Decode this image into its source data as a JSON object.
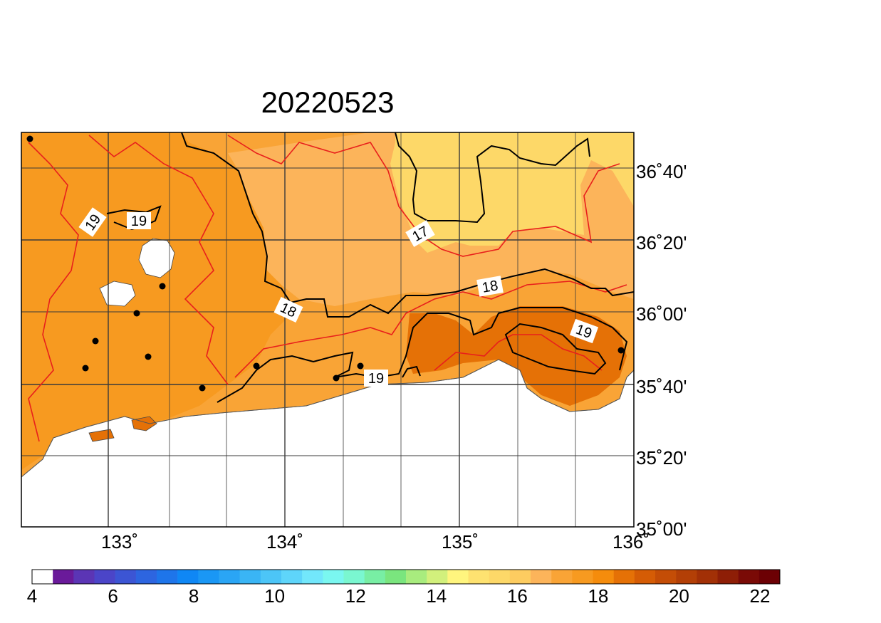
{
  "title": "20220523",
  "x_ticks": [
    "133˚",
    "134˚",
    "135˚",
    "136˚"
  ],
  "y_ticks": [
    "36˚40'",
    "36˚20'",
    "36˚00'",
    "35˚40'",
    "35˚20'",
    "35˚00'"
  ],
  "contour_labels": [
    "19",
    "19",
    "17",
    "18",
    "18",
    "19",
    "19"
  ],
  "colorbar": {
    "min": 4,
    "max": 22,
    "step": 0.5,
    "tick_labels": [
      "4",
      "6",
      "8",
      "10",
      "12",
      "14",
      "16",
      "18",
      "20",
      "22"
    ],
    "colors": [
      "#ffffff",
      "#6a1a9a",
      "#5b35b5",
      "#4b45c8",
      "#3c55d4",
      "#2d65e0",
      "#1e75ea",
      "#0f87f5",
      "#1a97f5",
      "#2aa5f5",
      "#3ab5f5",
      "#4cc5f7",
      "#5ed5fa",
      "#72e7fb",
      "#7af7f0",
      "#7af7d0",
      "#78eea4",
      "#7ae57e",
      "#a8ec7e",
      "#d2f07c",
      "#fff57e",
      "#fee270",
      "#fdd868",
      "#fdcc60",
      "#fcb45a",
      "#f9a436",
      "#f79a20",
      "#f58c0c",
      "#e57106",
      "#d55c05",
      "#c44d06",
      "#b33f06",
      "#a23006",
      "#8e1e06",
      "#7a0a06",
      "#6c0004"
    ]
  },
  "colors": {
    "frame": "#000000",
    "land_main": "#f9a436",
    "land_warm": "#f79a20",
    "land_cool": "#fcb45a",
    "land_yellow": "#fdd868",
    "land_hot": "#e57106",
    "sea": "#ffffff",
    "contour_black": "#000000",
    "contour_red": "#e8201c",
    "grid": "#3a3a3a",
    "station": "#000000"
  }
}
